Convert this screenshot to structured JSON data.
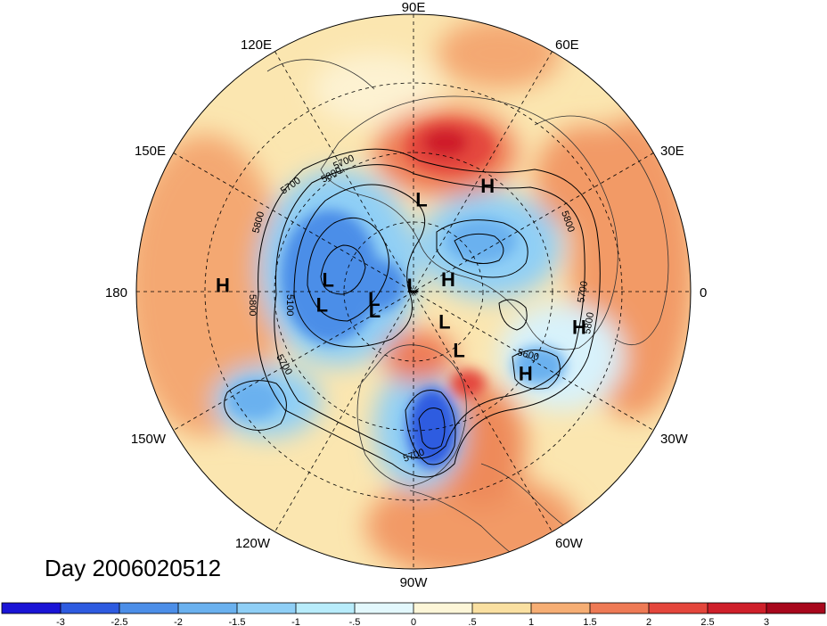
{
  "title": "Day 2006020512",
  "longitude_labels": [
    "90E",
    "60E",
    "30E",
    "0",
    "30W",
    "60W",
    "90W",
    "120W",
    "150W",
    "180",
    "150E",
    "120E"
  ],
  "pressure_centers": [
    {
      "type": "L",
      "lon": 52,
      "lat": 66
    },
    {
      "type": "H",
      "lon": 36,
      "lat": 45
    },
    {
      "type": "L",
      "lon": 44,
      "lat": 76
    },
    {
      "type": "H",
      "lon": 12,
      "lat": 35
    },
    {
      "type": "L",
      "lon": 172,
      "lat": 60
    },
    {
      "type": "L",
      "lon": 154,
      "lat": 76
    },
    {
      "type": "L",
      "lon": -172,
      "lat": 62
    },
    {
      "type": "L",
      "lon": 170,
      "lat": 77
    },
    {
      "type": "L",
      "lon": -95,
      "lat": 88
    },
    {
      "type": "H",
      "lon": -20,
      "lat": 78
    },
    {
      "type": "H",
      "lon": -178,
      "lat": 28
    },
    {
      "type": "L",
      "lon": -85,
      "lat": 60
    },
    {
      "type": "H",
      "lon": -55,
      "lat": 48
    }
  ],
  "contour_labels": [
    "5700",
    "5800",
    "5800",
    "5700",
    "5100",
    "5800",
    "5700",
    "5800",
    "5700",
    "5800",
    "5600",
    "5700"
  ],
  "colorbar": {
    "ticks": [
      "-3",
      "-2.5",
      "-2",
      "-1.5",
      "-1",
      "-.5",
      "0",
      ".5",
      "1",
      "1.5",
      "2",
      "2.5",
      "3"
    ],
    "colors": [
      "#1a14d6",
      "#2e5be0",
      "#4c8ee8",
      "#6ab1ef",
      "#8fcff6",
      "#b8ecfb",
      "#e3f8fd",
      "#fdf6d8",
      "#fae0a1",
      "#f6ae74",
      "#ee7a55",
      "#e4463c",
      "#cf1f2a",
      "#a8071c"
    ]
  }
}
